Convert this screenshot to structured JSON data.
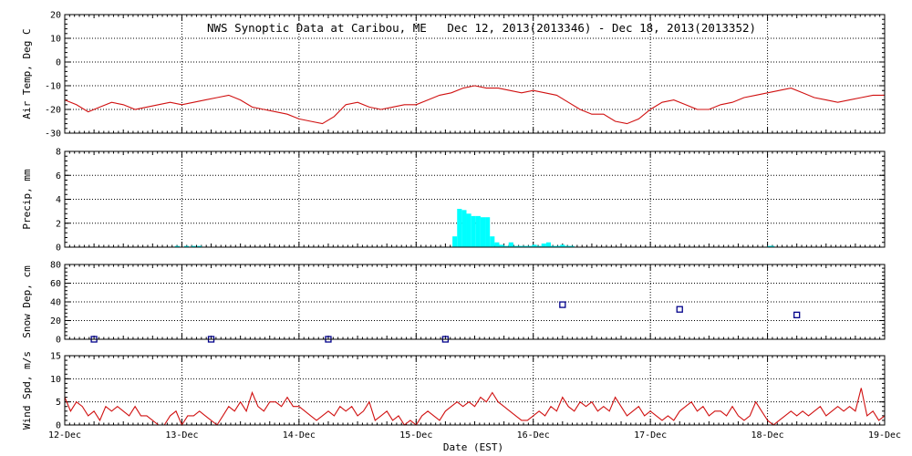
{
  "figure": {
    "title": "NWS Synoptic Data at Caribou, ME   Dec 12, 2013(2013346) - Dec 18, 2013(2013352)",
    "xlabel": "Date (EST)",
    "x_ticks": [
      "12-Dec",
      "13-Dec",
      "14-Dec",
      "15-Dec",
      "16-Dec",
      "17-Dec",
      "18-Dec",
      "19-Dec"
    ]
  },
  "colors": {
    "temp_line": "#d01010",
    "precip_bar": "#00ffff",
    "snow_marker": "#00008b",
    "wind_line": "#d01010",
    "axis": "#000000",
    "grid": "#000000"
  },
  "chart_data": [
    {
      "type": "line",
      "panel": "temp",
      "ylabel": "Air Temp, Deg C",
      "ylim": [
        -30,
        20
      ],
      "y_ticks": [
        "20",
        "10",
        "0",
        "-10",
        "-20",
        "-30"
      ],
      "xlim": [
        0,
        7
      ],
      "grid": true,
      "series": [
        {
          "x": [
            0.0,
            0.1,
            0.2,
            0.3,
            0.4,
            0.5,
            0.6,
            0.7,
            0.8,
            0.9,
            1.0,
            1.1,
            1.2,
            1.3,
            1.4,
            1.5,
            1.6,
            1.7,
            1.8,
            1.9,
            2.0,
            2.1,
            2.2,
            2.3,
            2.4,
            2.5,
            2.6,
            2.7,
            2.8,
            2.9,
            3.0,
            3.1,
            3.2,
            3.3,
            3.4,
            3.5,
            3.6,
            3.7,
            3.8,
            3.9,
            4.0,
            4.1,
            4.2,
            4.3,
            4.4,
            4.5,
            4.6,
            4.7,
            4.8,
            4.9,
            5.0,
            5.1,
            5.2,
            5.3,
            5.4,
            5.5,
            5.6,
            5.7,
            5.8,
            5.9,
            6.0,
            6.1,
            6.2,
            6.3,
            6.4,
            6.5,
            6.6,
            6.7,
            6.8,
            6.9,
            7.0
          ],
          "values": [
            -16,
            -18,
            -21,
            -19,
            -17,
            -18,
            -20,
            -19,
            -18,
            -17,
            -18,
            -17,
            -16,
            -15,
            -14,
            -16,
            -19,
            -20,
            -21,
            -22,
            -24,
            -25,
            -26,
            -23,
            -18,
            -17,
            -19,
            -20,
            -19,
            -18,
            -18,
            -16,
            -14,
            -13,
            -11,
            -10,
            -11,
            -11,
            -12,
            -13,
            -12,
            -13,
            -14,
            -17,
            -20,
            -22,
            -22,
            -25,
            -26,
            -24,
            -20,
            -17,
            -16,
            -18,
            -20,
            -20,
            -18,
            -17,
            -15,
            -14,
            -13,
            -12,
            -11,
            -13,
            -15,
            -16,
            -17,
            -16,
            -15,
            -14,
            -14
          ]
        }
      ]
    },
    {
      "type": "bar",
      "panel": "precip",
      "ylabel": "Precip, mm",
      "ylim": [
        0,
        8
      ],
      "y_ticks": [
        "8",
        "6",
        "4",
        "2",
        "0"
      ],
      "xlim": [
        0,
        7
      ],
      "grid": true,
      "x": [
        0.96,
        1.04,
        1.1,
        1.15,
        3.33,
        3.37,
        3.41,
        3.45,
        3.49,
        3.53,
        3.57,
        3.61,
        3.65,
        3.69,
        3.73,
        3.77,
        3.81,
        3.85,
        3.89,
        3.93,
        3.97,
        4.01,
        4.05,
        4.09,
        4.13,
        4.17,
        4.21,
        4.25,
        4.29,
        4.33,
        6.02,
        6.04
      ],
      "values": [
        0.1,
        0.1,
        0.1,
        0.1,
        0.9,
        3.2,
        3.1,
        2.8,
        2.6,
        2.6,
        2.5,
        2.5,
        0.9,
        0.4,
        0.2,
        0.1,
        0.4,
        0.1,
        0.1,
        0.1,
        0.1,
        0.2,
        0.1,
        0.3,
        0.4,
        0.1,
        0.1,
        0.2,
        0.1,
        0.1,
        0.1,
        0.1
      ]
    },
    {
      "type": "scatter",
      "panel": "snow",
      "ylabel": "Snow Dep, cm",
      "ylim": [
        0,
        80
      ],
      "y_ticks": [
        "80",
        "60",
        "40",
        "20",
        "0"
      ],
      "xlim": [
        0,
        7
      ],
      "grid": true,
      "x": [
        0.25,
        1.25,
        2.25,
        3.25,
        4.25,
        5.25,
        6.25
      ],
      "values": [
        0,
        0,
        0,
        0,
        37,
        32,
        26
      ]
    },
    {
      "type": "line",
      "panel": "wind",
      "ylabel": "Wind Spd, m/s",
      "ylim": [
        0,
        15
      ],
      "y_ticks": [
        "15",
        "10",
        "5",
        "0"
      ],
      "xlim": [
        0,
        7
      ],
      "grid": true,
      "series": [
        {
          "x": [
            0.0,
            0.05,
            0.1,
            0.15,
            0.2,
            0.25,
            0.3,
            0.35,
            0.4,
            0.45,
            0.5,
            0.55,
            0.6,
            0.65,
            0.7,
            0.75,
            0.8,
            0.85,
            0.9,
            0.95,
            1.0,
            1.05,
            1.1,
            1.15,
            1.2,
            1.25,
            1.3,
            1.35,
            1.4,
            1.45,
            1.5,
            1.55,
            1.6,
            1.65,
            1.7,
            1.75,
            1.8,
            1.85,
            1.9,
            1.95,
            2.0,
            2.05,
            2.1,
            2.15,
            2.2,
            2.25,
            2.3,
            2.35,
            2.4,
            2.45,
            2.5,
            2.55,
            2.6,
            2.65,
            2.7,
            2.75,
            2.8,
            2.85,
            2.9,
            2.95,
            3.0,
            3.05,
            3.1,
            3.15,
            3.2,
            3.25,
            3.3,
            3.35,
            3.4,
            3.45,
            3.5,
            3.55,
            3.6,
            3.65,
            3.7,
            3.75,
            3.8,
            3.85,
            3.9,
            3.95,
            4.0,
            4.05,
            4.1,
            4.15,
            4.2,
            4.25,
            4.3,
            4.35,
            4.4,
            4.45,
            4.5,
            4.55,
            4.6,
            4.65,
            4.7,
            4.75,
            4.8,
            4.85,
            4.9,
            4.95,
            5.0,
            5.05,
            5.1,
            5.15,
            5.2,
            5.25,
            5.3,
            5.35,
            5.4,
            5.45,
            5.5,
            5.55,
            5.6,
            5.65,
            5.7,
            5.75,
            5.8,
            5.85,
            5.9,
            5.95,
            6.0,
            6.05,
            6.1,
            6.15,
            6.2,
            6.25,
            6.3,
            6.35,
            6.4,
            6.45,
            6.5,
            6.55,
            6.6,
            6.65,
            6.7,
            6.75,
            6.8,
            6.85,
            6.9,
            6.95,
            7.0
          ],
          "values": [
            6,
            3,
            5,
            4,
            2,
            3,
            1,
            4,
            3,
            4,
            3,
            2,
            4,
            2,
            2,
            1,
            0,
            0,
            2,
            3,
            0,
            2,
            2,
            3,
            2,
            1,
            0,
            2,
            4,
            3,
            5,
            3,
            7,
            4,
            3,
            5,
            5,
            4,
            6,
            4,
            4,
            3,
            2,
            1,
            2,
            3,
            2,
            4,
            3,
            4,
            2,
            3,
            5,
            1,
            2,
            3,
            1,
            2,
            0,
            1,
            0,
            2,
            3,
            2,
            1,
            3,
            4,
            5,
            4,
            5,
            4,
            6,
            5,
            7,
            5,
            4,
            3,
            2,
            1,
            1,
            2,
            3,
            2,
            4,
            3,
            6,
            4,
            3,
            5,
            4,
            5,
            3,
            4,
            3,
            6,
            4,
            2,
            3,
            4,
            2,
            3,
            2,
            1,
            2,
            1,
            3,
            4,
            5,
            3,
            4,
            2,
            3,
            3,
            2,
            4,
            2,
            1,
            2,
            5,
            3,
            1,
            0,
            1,
            2,
            3,
            2,
            3,
            2,
            3,
            4,
            2,
            3,
            4,
            3,
            4,
            3,
            8,
            2,
            3,
            1,
            2
          ]
        }
      ]
    }
  ]
}
